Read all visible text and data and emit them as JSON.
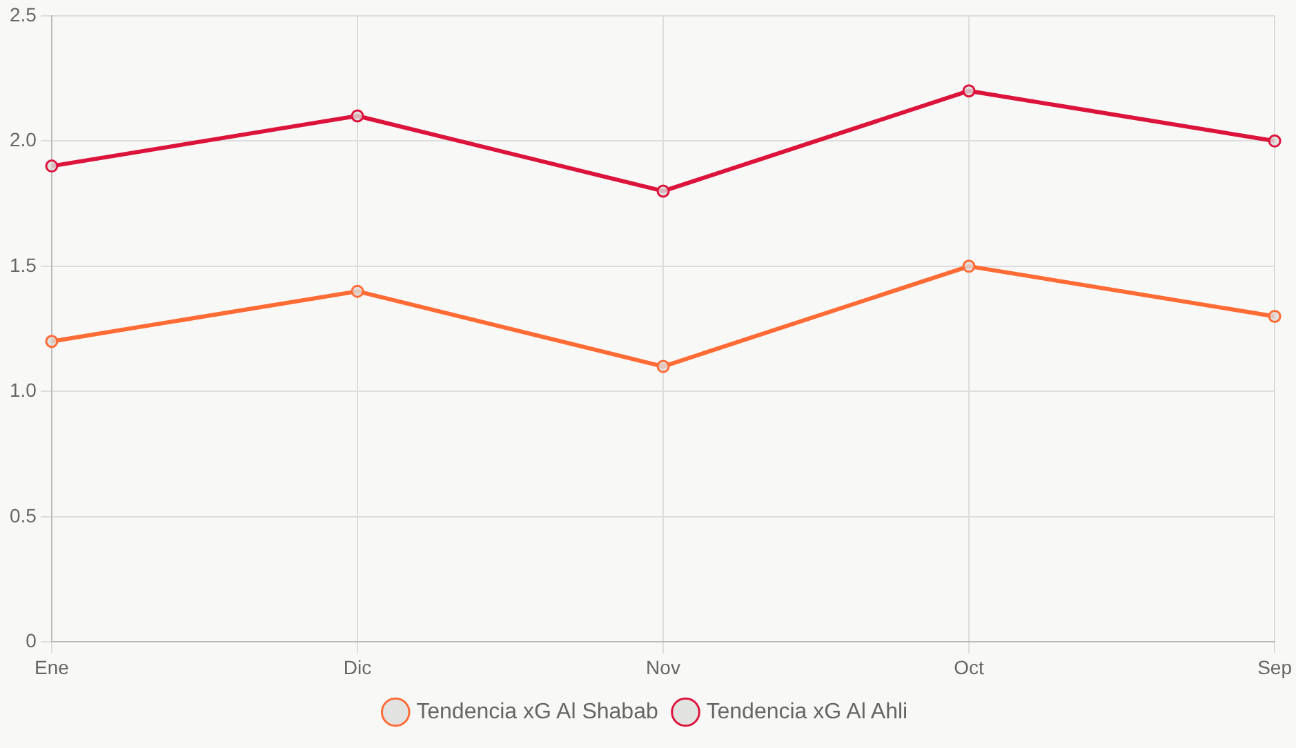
{
  "chart_data": {
    "type": "line",
    "categories": [
      "Ene",
      "Dic",
      "Nov",
      "Oct",
      "Sep"
    ],
    "series": [
      {
        "name": "Tendencia xG Al Shabab",
        "color": "#ff6b35",
        "values": [
          1.2,
          1.4,
          1.1,
          1.5,
          1.3
        ]
      },
      {
        "name": "Tendencia xG Al Ahli",
        "color": "#dc143c",
        "values": [
          1.9,
          2.1,
          1.8,
          2.2,
          2.0
        ]
      }
    ],
    "ylim": [
      0,
      2.5
    ],
    "yticks": [
      {
        "value": 0,
        "label": "0"
      },
      {
        "value": 0.5,
        "label": "0.5"
      },
      {
        "value": 1,
        "label": "1.0"
      },
      {
        "value": 1.5,
        "label": "1.5"
      },
      {
        "value": 2,
        "label": "2.0"
      },
      {
        "value": 2.5,
        "label": "2.5"
      }
    ],
    "grid": true,
    "legend": "bottom",
    "marker": "circle",
    "line_style": "solid"
  }
}
